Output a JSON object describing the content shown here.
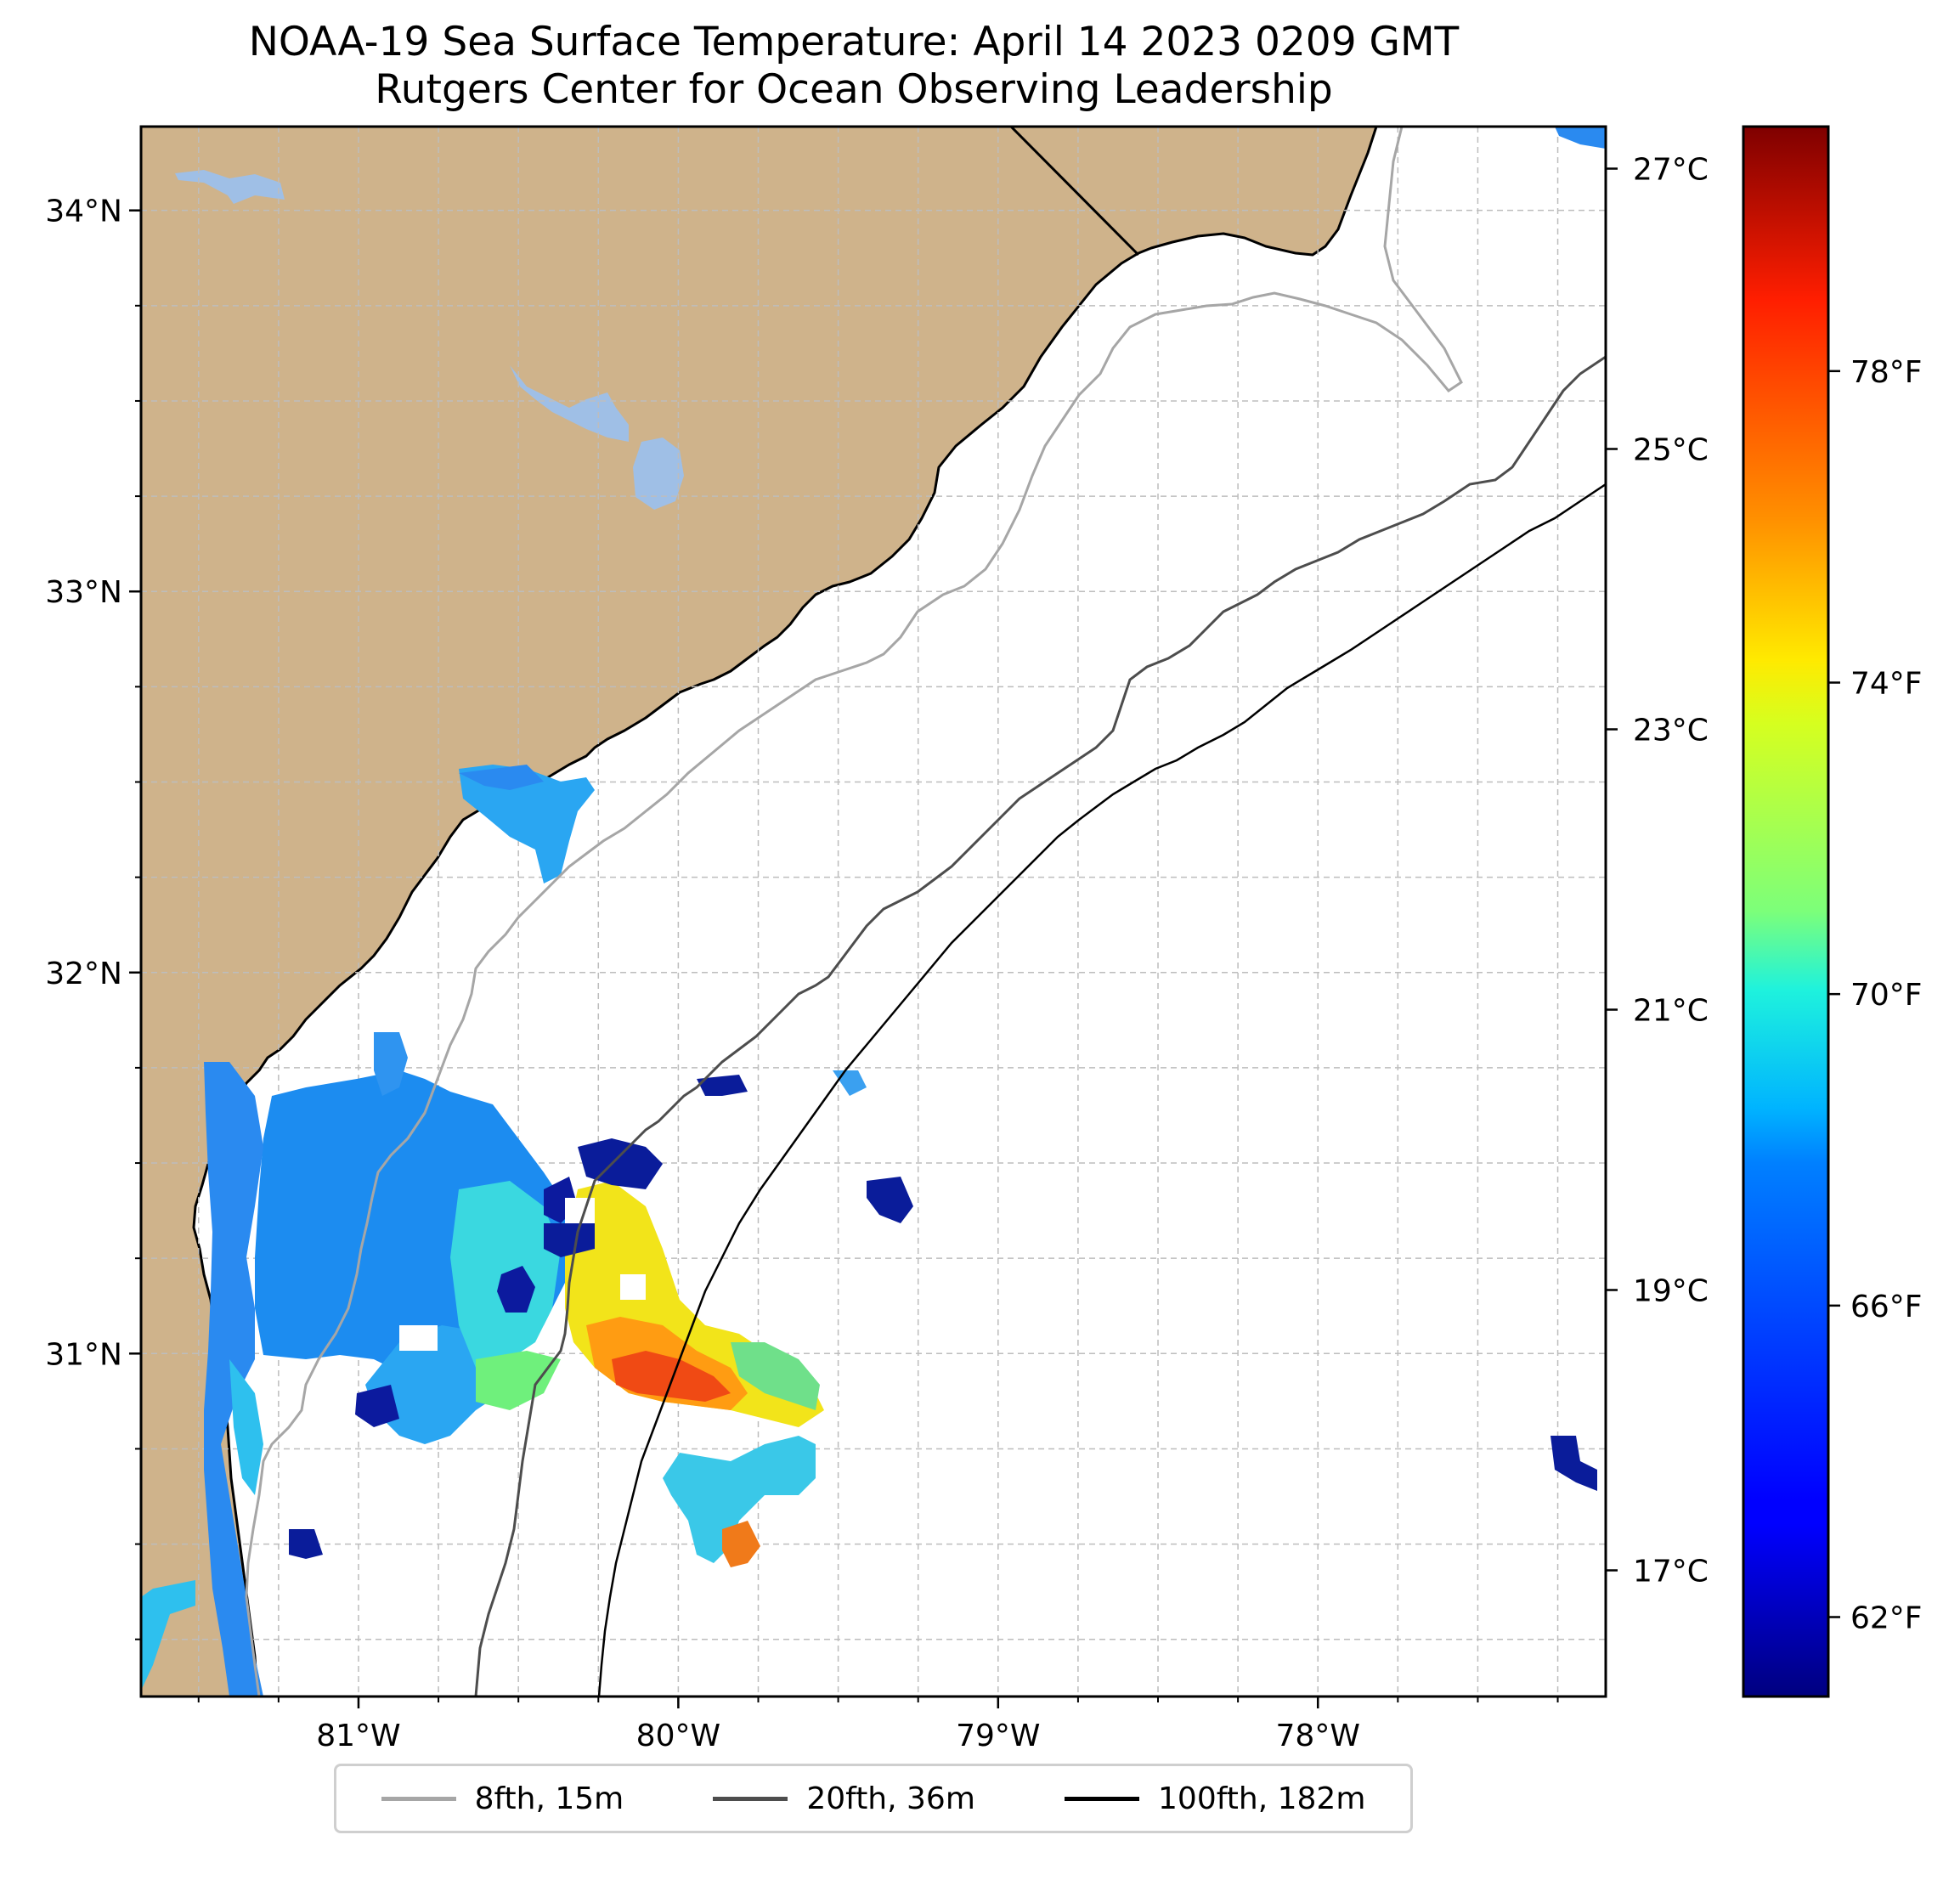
{
  "title": {
    "line1": "NOAA-19 Sea Surface Temperature: April 14 2023 0209 GMT",
    "line2": "Rutgers Center for Ocean Observing Leadership"
  },
  "map": {
    "lon_range": [
      -81.68,
      -77.1
    ],
    "lat_range": [
      30.1,
      34.22
    ],
    "lat_ticks": [
      {
        "value": 34,
        "label": "34°N"
      },
      {
        "value": 33,
        "label": "33°N"
      },
      {
        "value": 32,
        "label": "32°N"
      },
      {
        "value": 31,
        "label": "31°N"
      }
    ],
    "lon_ticks": [
      {
        "value": -81,
        "label": "81°W"
      },
      {
        "value": -80,
        "label": "80°W"
      },
      {
        "value": -79,
        "label": "79°W"
      },
      {
        "value": -78,
        "label": "78°W"
      }
    ],
    "colors": {
      "land": "#cfb38b",
      "lakes": "#9fbfe6",
      "ocean": "#ffffff",
      "grid": "#bdbdbd"
    }
  },
  "colorbar": {
    "colormap": "jet",
    "celsius_range": [
      16.1,
      27.3
    ],
    "celsius_ticks": [
      {
        "value": 27,
        "label": "27°C"
      },
      {
        "value": 25,
        "label": "25°C"
      },
      {
        "value": 23,
        "label": "23°C"
      },
      {
        "value": 21,
        "label": "21°C"
      },
      {
        "value": 19,
        "label": "19°C"
      },
      {
        "value": 17,
        "label": "17°C"
      }
    ],
    "fahrenheit_ticks": [
      {
        "value": 78,
        "label": "78°F"
      },
      {
        "value": 74,
        "label": "74°F"
      },
      {
        "value": 70,
        "label": "70°F"
      },
      {
        "value": 66,
        "label": "66°F"
      },
      {
        "value": 62,
        "label": "62°F"
      }
    ]
  },
  "legend": {
    "items": [
      {
        "label": "8fth, 15m",
        "color": "#a6a6a6"
      },
      {
        "label": "20fth, 36m",
        "color": "#4d4d4d"
      },
      {
        "label": "100fth, 182m",
        "color": "#000000"
      }
    ]
  }
}
